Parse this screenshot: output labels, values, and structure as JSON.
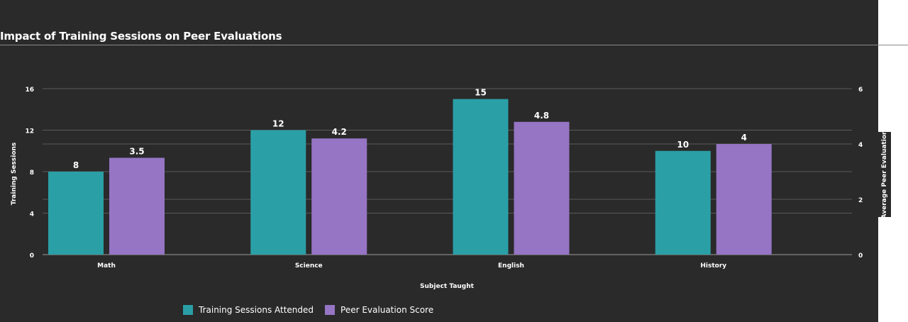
{
  "title": "Impact of Training Sessions on Peer Evaluations",
  "chart_data": {
    "type": "bar",
    "categories": [
      "Math",
      "Science",
      "English",
      "History"
    ],
    "series": [
      {
        "name": "Training Sessions Attended",
        "axis": "left",
        "color": "#2a9fa6",
        "values": [
          8,
          12,
          15,
          10
        ]
      },
      {
        "name": "Peer Evaluation Score",
        "axis": "right",
        "color": "#9575c4",
        "values": [
          3.5,
          4.2,
          4.8,
          4
        ]
      }
    ],
    "xlabel": "Subject Taught",
    "ylabel": "Training Sessions",
    "y2label": "Average Peer Evaluation",
    "ylim": [
      0,
      16
    ],
    "y2lim": [
      0,
      6
    ],
    "yticks": [
      "0",
      "4",
      "8",
      "12",
      "16"
    ],
    "y2ticks": [
      "0",
      "2",
      "4",
      "6"
    ],
    "grid": true,
    "legend_position": "bottom"
  }
}
